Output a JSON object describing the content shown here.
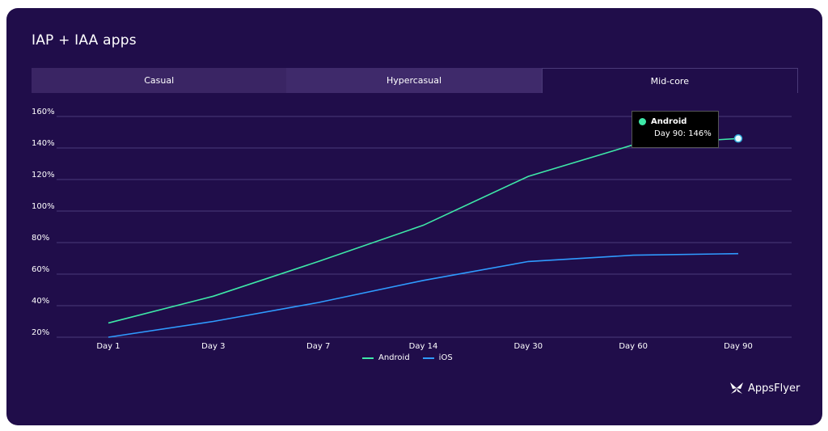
{
  "title": "IAP + IAA apps",
  "tabs": [
    {
      "label": "Casual",
      "active": false
    },
    {
      "label": "Hypercasual",
      "active": false
    },
    {
      "label": "Mid-core",
      "active": true
    }
  ],
  "tooltip": {
    "series": "Android",
    "text": "Day 90: 146%",
    "color": "#3ee8a8"
  },
  "brand": {
    "name": "AppsFlyer",
    "icon": "appsflyer-logo-icon"
  },
  "colors": {
    "background": "#200d4a",
    "android": "#3ee8a8",
    "ios": "#2f9bff"
  },
  "chart_data": {
    "type": "line",
    "categories": [
      "Day 1",
      "Day 3",
      "Day 7",
      "Day 14",
      "Day 30",
      "Day 60",
      "Day 90"
    ],
    "y_tick_labels": [
      "20%",
      "40%",
      "60%",
      "80%",
      "100%",
      "120%",
      "140%",
      "160%"
    ],
    "ylim": [
      20,
      160
    ],
    "grid": true,
    "legend_position": "bottom-center",
    "series": [
      {
        "name": "Android",
        "color": "#3ee8a8",
        "values": [
          29,
          46,
          68,
          91,
          122,
          142,
          146
        ]
      },
      {
        "name": "iOS",
        "color": "#2f9bff",
        "values": [
          20,
          30,
          42,
          56,
          68,
          72,
          73
        ]
      }
    ]
  }
}
